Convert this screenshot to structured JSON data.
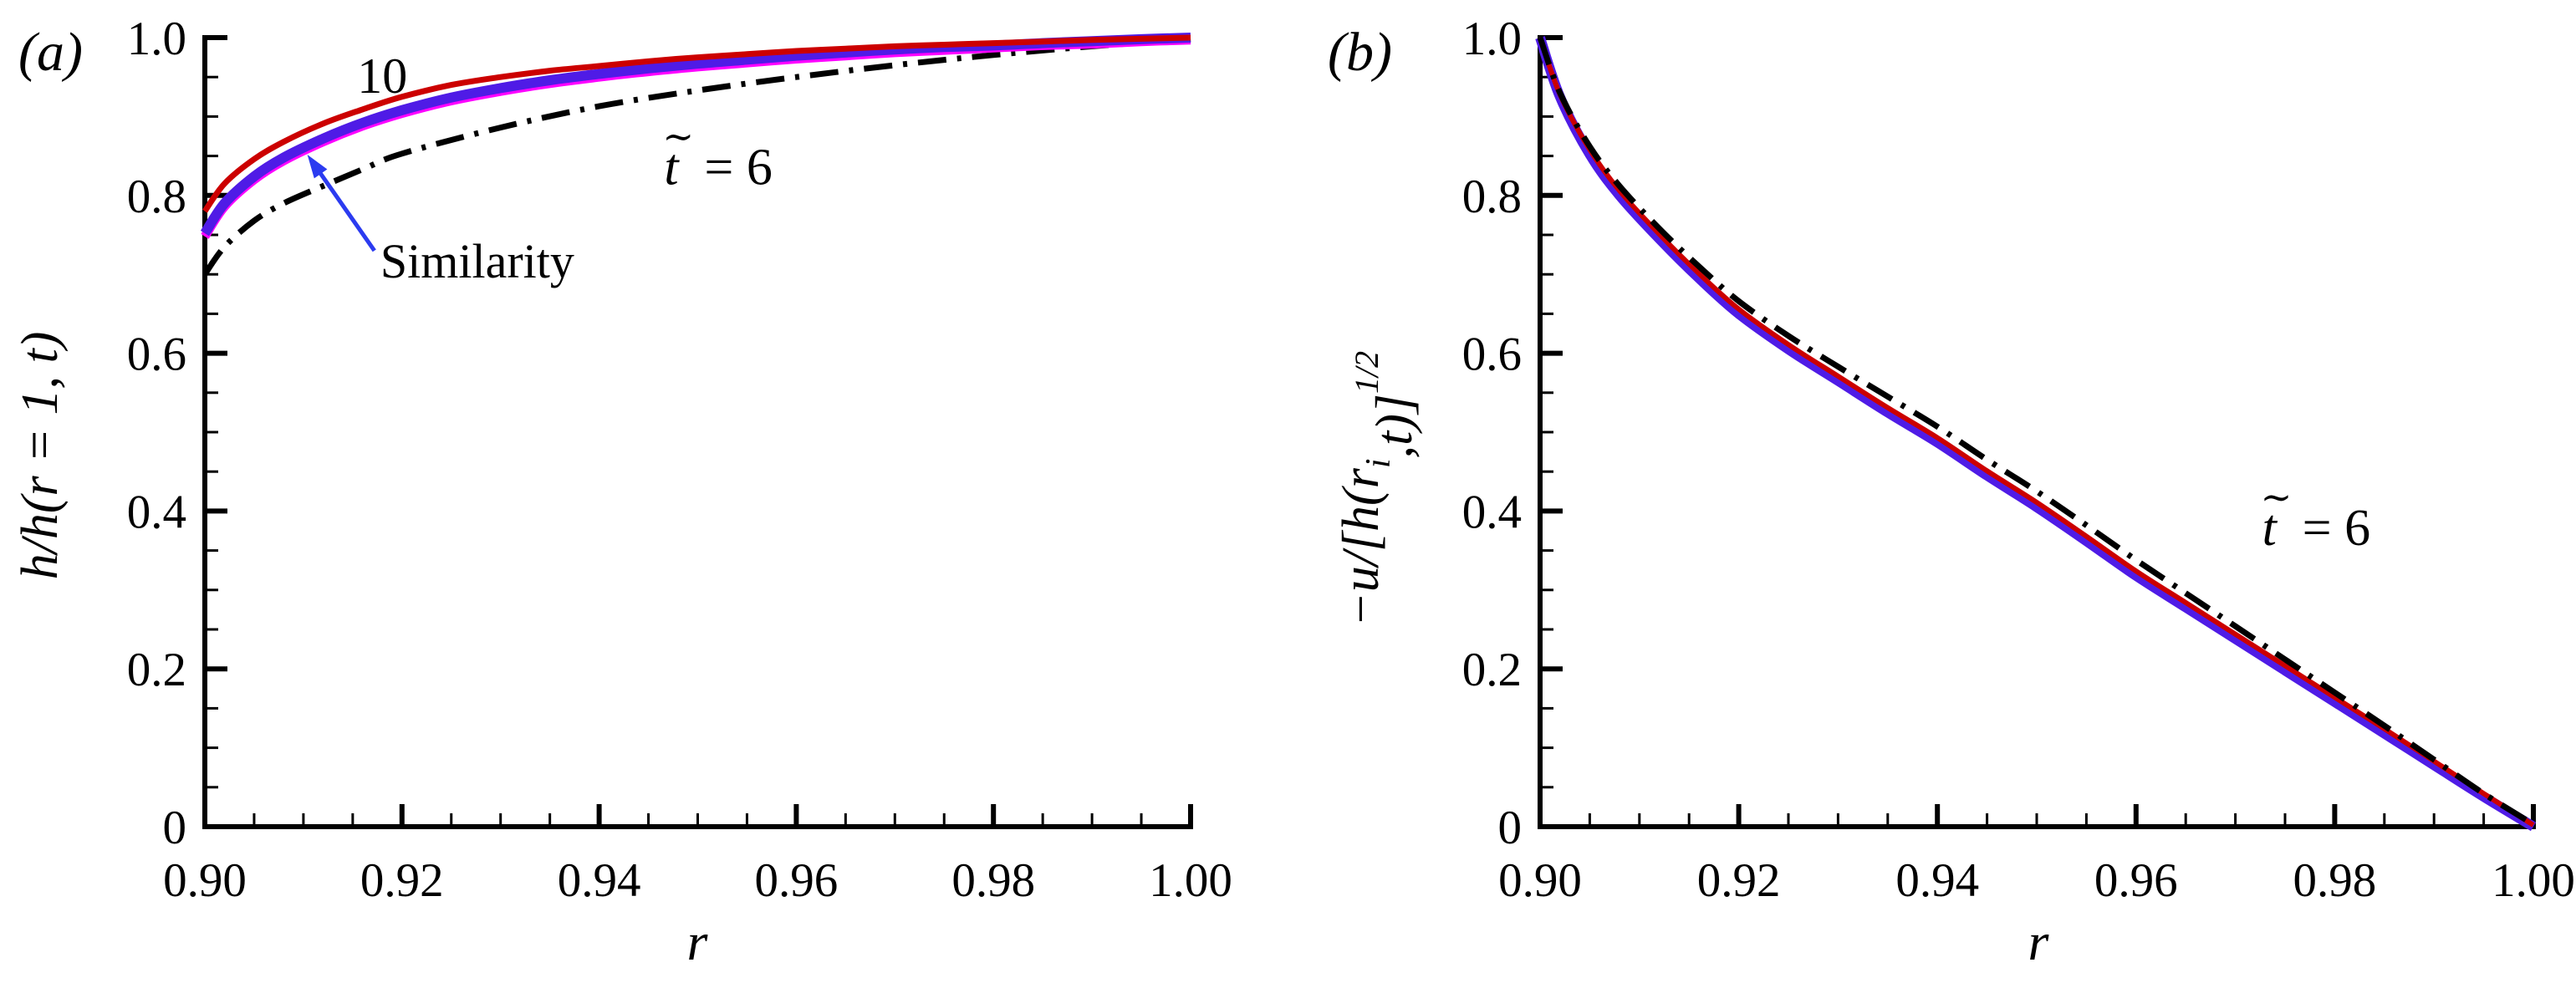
{
  "figure": {
    "background": "#ffffff",
    "colors": {
      "red": "#cc0000",
      "blue_curve": "#4f1be6",
      "blue_text": "#2b3bf0",
      "magenta": "#ff00ff",
      "black": "#000000"
    }
  },
  "chart_data": [
    {
      "id": "a",
      "type": "line",
      "panel_label": "(a)",
      "xlabel": "r",
      "ylabel": "h/h(r = 1, t)",
      "xlim": [
        0.9,
        1.0
      ],
      "ylim": [
        0,
        1.0
      ],
      "x_tick_labels": [
        "0.90",
        "0.92",
        "0.94",
        "0.96",
        "0.98",
        "1.00"
      ],
      "y_tick_labels": [
        "0",
        "0.2",
        "0.4",
        "0.6",
        "0.8",
        "1.0"
      ],
      "x_major_step": 0.02,
      "x_minor_step": 0.005,
      "y_major_step": 0.2,
      "y_minor_step": 0.05,
      "grid": false,
      "series": [
        {
          "name": "t6-dashdot",
          "label": "t̃ = 6",
          "color": "black",
          "style": "dashdot",
          "width": 7,
          "points": [
            [
              0.9,
              0.7
            ],
            [
              0.902,
              0.735
            ],
            [
              0.905,
              0.768
            ],
            [
              0.908,
              0.79
            ],
            [
              0.912,
              0.812
            ],
            [
              0.916,
              0.833
            ],
            [
              0.92,
              0.853
            ],
            [
              0.93,
              0.886
            ],
            [
              0.94,
              0.913
            ],
            [
              0.95,
              0.933
            ],
            [
              0.96,
              0.95
            ],
            [
              0.97,
              0.965
            ],
            [
              0.98,
              0.978
            ],
            [
              0.99,
              0.989
            ],
            [
              1.0,
              0.998
            ]
          ]
        },
        {
          "name": "magenta-underlay",
          "label": "",
          "color": "magenta",
          "style": "solid",
          "width": 11,
          "points": [
            [
              0.9,
              0.748
            ],
            [
              0.902,
              0.786
            ],
            [
              0.905,
              0.82
            ],
            [
              0.908,
              0.844
            ],
            [
              0.912,
              0.868
            ],
            [
              0.916,
              0.888
            ],
            [
              0.92,
              0.904
            ],
            [
              0.925,
              0.92
            ],
            [
              0.93,
              0.932
            ],
            [
              0.935,
              0.942
            ],
            [
              0.94,
              0.95
            ],
            [
              0.945,
              0.957
            ],
            [
              0.95,
              0.963
            ],
            [
              0.955,
              0.968
            ],
            [
              0.96,
              0.973
            ],
            [
              0.965,
              0.977
            ],
            [
              0.97,
              0.981
            ],
            [
              0.975,
              0.984
            ],
            [
              0.98,
              0.987
            ],
            [
              0.985,
              0.99
            ],
            [
              0.99,
              0.992
            ],
            [
              0.995,
              0.995
            ],
            [
              1.0,
              0.997
            ]
          ]
        },
        {
          "name": "similarity",
          "label": "Similarity",
          "color": "blue_curve",
          "style": "solid",
          "width": 12,
          "points": [
            [
              0.9,
              0.752
            ],
            [
              0.902,
              0.79
            ],
            [
              0.905,
              0.824
            ],
            [
              0.908,
              0.848
            ],
            [
              0.912,
              0.872
            ],
            [
              0.916,
              0.892
            ],
            [
              0.92,
              0.908
            ],
            [
              0.925,
              0.924
            ],
            [
              0.93,
              0.936
            ],
            [
              0.935,
              0.946
            ],
            [
              0.94,
              0.954
            ],
            [
              0.945,
              0.961
            ],
            [
              0.95,
              0.967
            ],
            [
              0.955,
              0.972
            ],
            [
              0.96,
              0.977
            ],
            [
              0.965,
              0.981
            ],
            [
              0.97,
              0.985
            ],
            [
              0.975,
              0.988
            ],
            [
              0.98,
              0.99
            ],
            [
              0.985,
              0.993
            ],
            [
              0.99,
              0.9955
            ],
            [
              0.995,
              0.998
            ],
            [
              1.0,
              1.0
            ]
          ]
        },
        {
          "name": "t10",
          "label": "10",
          "color": "red",
          "style": "solid",
          "width": 7,
          "points": [
            [
              0.9,
              0.78
            ],
            [
              0.902,
              0.815
            ],
            [
              0.905,
              0.846
            ],
            [
              0.908,
              0.868
            ],
            [
              0.912,
              0.891
            ],
            [
              0.916,
              0.909
            ],
            [
              0.92,
              0.925
            ],
            [
              0.925,
              0.94
            ],
            [
              0.93,
              0.95
            ],
            [
              0.935,
              0.958
            ],
            [
              0.94,
              0.964
            ],
            [
              0.945,
              0.97
            ],
            [
              0.95,
              0.975
            ],
            [
              0.955,
              0.979
            ],
            [
              0.96,
              0.983
            ],
            [
              0.965,
              0.986
            ],
            [
              0.97,
              0.989
            ],
            [
              0.975,
              0.991
            ],
            [
              0.98,
              0.993
            ],
            [
              0.985,
              0.995
            ],
            [
              0.99,
              0.997
            ],
            [
              0.995,
              0.9985
            ],
            [
              1.0,
              1.0
            ]
          ]
        }
      ],
      "annotations": [
        {
          "name": "label-10",
          "kind": "text",
          "text": "10",
          "color": "red",
          "r": 0.918,
          "v": 0.93,
          "anchor": "middle",
          "size": 60,
          "italic": false
        },
        {
          "name": "label-t6",
          "kind": "tilde",
          "t": "t",
          "tilde": "∼",
          "rest": "= 6",
          "rest_dx": 48,
          "color": "black",
          "r": 0.9466,
          "v": 0.814,
          "size": 62
        },
        {
          "name": "label-similarity",
          "kind": "text",
          "text": "Similarity",
          "color": "blue_text",
          "r": 0.9178,
          "v": 0.696,
          "anchor": "start",
          "size": 58,
          "italic": false
        },
        {
          "name": "similarity-arrow",
          "kind": "arrow",
          "color": "blue_text",
          "from_r": 0.9172,
          "from_v": 0.73,
          "to_r": 0.9104,
          "to_v": 0.8517,
          "width": 5
        }
      ]
    },
    {
      "id": "b",
      "type": "line",
      "panel_label": "(b)",
      "xlabel": "r",
      "ylabel": "−u/[h(rᵢ,t)]^{1/2}",
      "ylabel_parts": [
        {
          "t": "−u/[h(r"
        },
        {
          "t": "i",
          "sub": true
        },
        {
          "t": ",t)]"
        },
        {
          "t": "1/2",
          "sup": true
        }
      ],
      "xlim": [
        0.9,
        1.0
      ],
      "ylim": [
        0,
        1.0
      ],
      "x_tick_labels": [
        "0.90",
        "0.92",
        "0.94",
        "0.96",
        "0.98",
        "1.00"
      ],
      "y_tick_labels": [
        "0",
        "0.2",
        "0.4",
        "0.6",
        "0.8",
        "1.0"
      ],
      "x_major_step": 0.02,
      "x_minor_step": 0.005,
      "y_major_step": 0.2,
      "y_minor_step": 0.05,
      "grid": false,
      "series": [
        {
          "name": "similarity",
          "label": "Similarity",
          "color": "blue_curve",
          "style": "solid",
          "width": 12,
          "points": [
            [
              0.9,
              1.0
            ],
            [
              0.902,
              0.925
            ],
            [
              0.905,
              0.852
            ],
            [
              0.908,
              0.8
            ],
            [
              0.912,
              0.745
            ],
            [
              0.916,
              0.695
            ],
            [
              0.92,
              0.65
            ],
            [
              0.925,
              0.605
            ],
            [
              0.93,
              0.565
            ],
            [
              0.935,
              0.525
            ],
            [
              0.94,
              0.487
            ],
            [
              0.945,
              0.445
            ],
            [
              0.95,
              0.405
            ],
            [
              0.955,
              0.362
            ],
            [
              0.96,
              0.318
            ],
            [
              0.965,
              0.278
            ],
            [
              0.97,
              0.238
            ],
            [
              0.975,
              0.198
            ],
            [
              0.98,
              0.158
            ],
            [
              0.985,
              0.118
            ],
            [
              0.99,
              0.078
            ],
            [
              0.995,
              0.038
            ],
            [
              1.0,
              0.0
            ]
          ]
        },
        {
          "name": "t10",
          "label": "10",
          "color": "red",
          "style": "solid",
          "width": 6,
          "points": [
            [
              0.9,
              1.0
            ],
            [
              0.902,
              0.928
            ],
            [
              0.905,
              0.858
            ],
            [
              0.908,
              0.806
            ],
            [
              0.912,
              0.751
            ],
            [
              0.916,
              0.701
            ],
            [
              0.92,
              0.656
            ],
            [
              0.925,
              0.611
            ],
            [
              0.93,
              0.571
            ],
            [
              0.935,
              0.531
            ],
            [
              0.94,
              0.493
            ],
            [
              0.945,
              0.451
            ],
            [
              0.95,
              0.411
            ],
            [
              0.955,
              0.368
            ],
            [
              0.96,
              0.324
            ],
            [
              0.965,
              0.284
            ],
            [
              0.97,
              0.244
            ],
            [
              0.975,
              0.204
            ],
            [
              0.98,
              0.164
            ],
            [
              0.985,
              0.124
            ],
            [
              0.99,
              0.083
            ],
            [
              0.995,
              0.042
            ],
            [
              1.0,
              0.002
            ]
          ]
        },
        {
          "name": "t6-dashdot",
          "label": "t̃ = 6",
          "color": "black",
          "style": "dashdot",
          "width": 7,
          "points": [
            [
              0.9,
              1.0
            ],
            [
              0.902,
              0.93
            ],
            [
              0.905,
              0.862
            ],
            [
              0.908,
              0.812
            ],
            [
              0.912,
              0.758
            ],
            [
              0.916,
              0.71
            ],
            [
              0.92,
              0.666
            ],
            [
              0.925,
              0.622
            ],
            [
              0.93,
              0.583
            ],
            [
              0.935,
              0.545
            ],
            [
              0.94,
              0.507
            ],
            [
              0.945,
              0.465
            ],
            [
              0.95,
              0.425
            ],
            [
              0.955,
              0.382
            ],
            [
              0.96,
              0.338
            ],
            [
              0.965,
              0.296
            ],
            [
              0.97,
              0.254
            ],
            [
              0.975,
              0.212
            ],
            [
              0.98,
              0.17
            ],
            [
              0.985,
              0.128
            ],
            [
              0.99,
              0.085
            ],
            [
              0.995,
              0.042
            ],
            [
              1.0,
              0.003
            ]
          ]
        }
      ],
      "annotations": [
        {
          "name": "label-t6",
          "kind": "tilde",
          "t": "t",
          "tilde": "∼",
          "rest": "= 6",
          "rest_dx": 48,
          "color": "black",
          "r": 0.9727,
          "v": 0.357,
          "size": 62
        }
      ]
    }
  ]
}
